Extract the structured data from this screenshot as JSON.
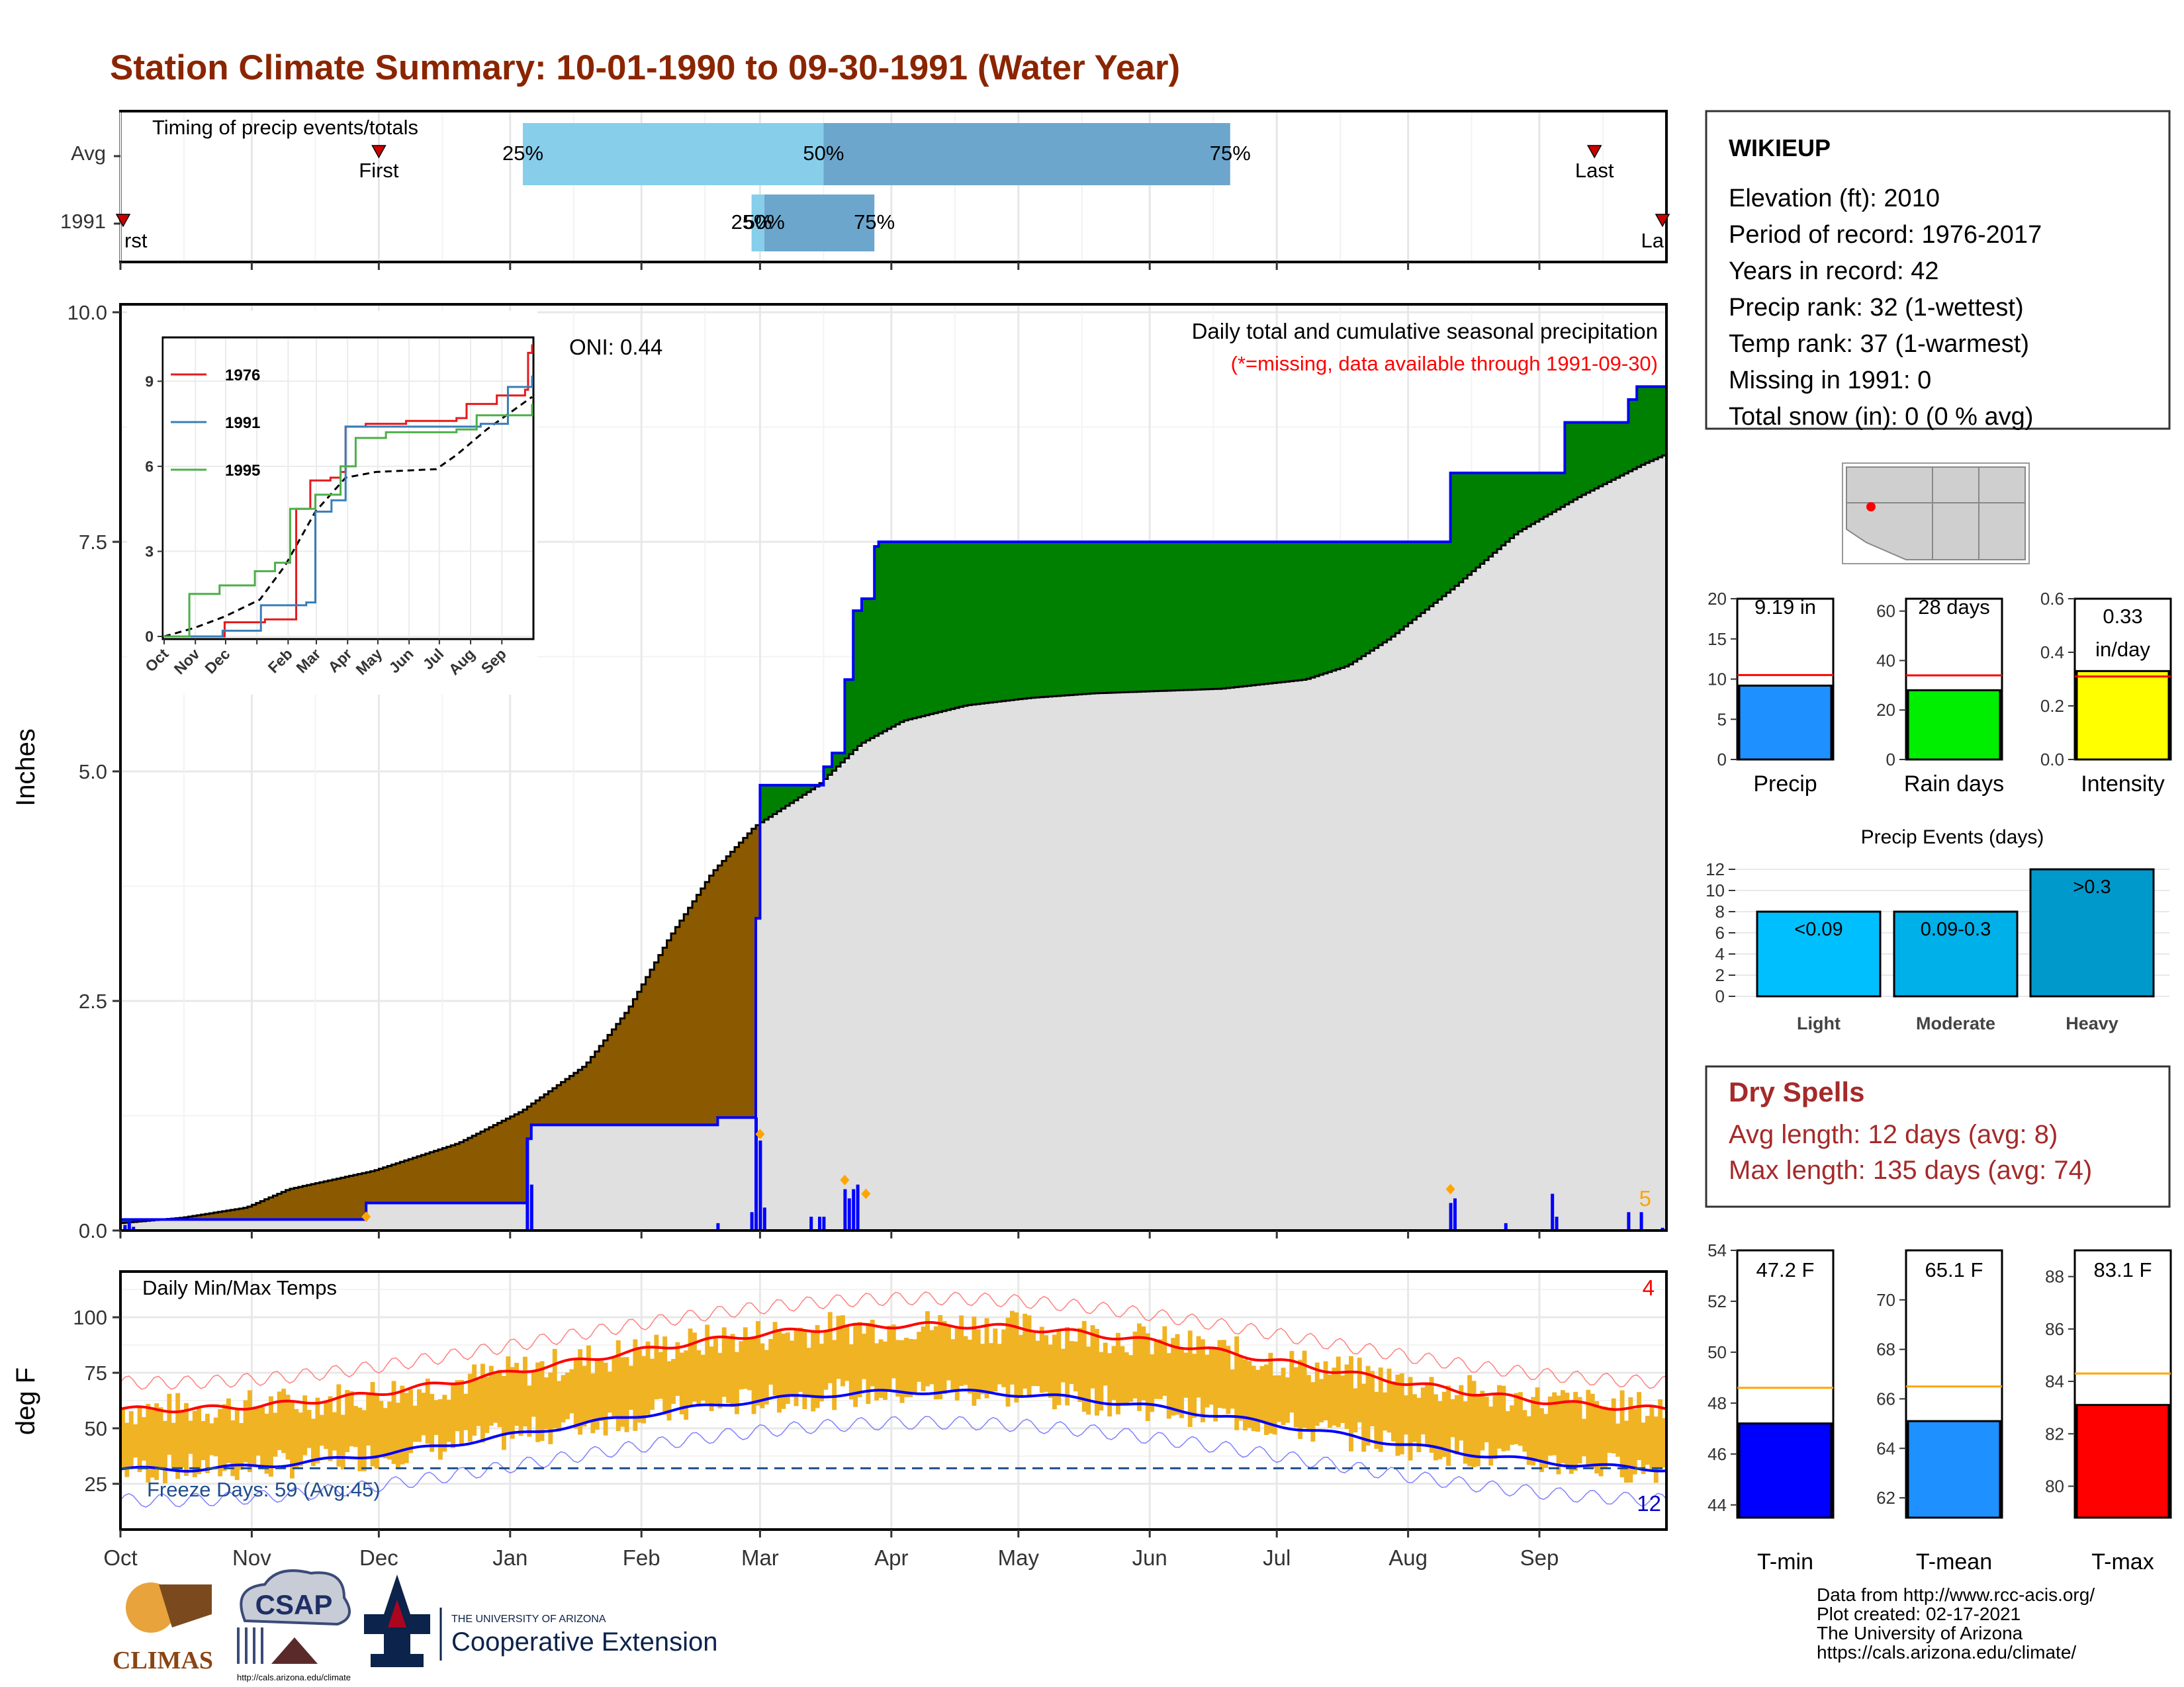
{
  "title": "Station Climate Summary: 10-01-1990 to 09-30-1991 (Water Year)",
  "colors": {
    "title": "#8b2500",
    "accum_avg": "#8b5a00",
    "accum_obs": "#008000",
    "obs_line": "#0000ff",
    "avg_fill": "#e0e0e0",
    "temp_bar": "#f0b323",
    "tmax_avg": "#ff0000",
    "tmin_avg": "#0000ff",
    "dry": "#a52a2a"
  },
  "months": [
    "Oct",
    "Nov",
    "Dec",
    "Jan",
    "Feb",
    "Mar",
    "Apr",
    "May",
    "Jun",
    "Jul",
    "Aug",
    "Sep"
  ],
  "timing": {
    "title": "Timing of precip events/totals",
    "rows": [
      "Avg",
      "1991"
    ],
    "first_label": "First",
    "last_label": "Last",
    "first_short": "rst",
    "last_short": "La",
    "avg": {
      "first": 61,
      "q25": 95,
      "q50": 166,
      "q75": 262,
      "last": 348
    },
    "year": {
      "first": 0,
      "q25": 149,
      "q50": 152,
      "q75": 178,
      "last": 365
    },
    "q25_label": "25%",
    "q50_label": "50%",
    "q75_label": "75%"
  },
  "precip_chart": {
    "ylabel": "Inches",
    "yticks": [
      "0.0",
      "2.5",
      "5.0",
      "7.5",
      "10.0"
    ],
    "ylim": [
      0,
      10
    ],
    "oni": "ONI: 0.44",
    "note1": "Daily total and cumulative seasonal precipitation",
    "note2": "(*=missing, data available through 1991-09-30)",
    "count_label": "5",
    "obs_cum": [
      [
        0,
        0.12
      ],
      [
        5,
        0.12
      ],
      [
        58,
        0.12
      ],
      [
        58,
        0.3
      ],
      [
        96,
        0.3
      ],
      [
        96,
        1.0
      ],
      [
        97,
        1.0
      ],
      [
        97,
        1.15
      ],
      [
        141,
        1.15
      ],
      [
        141,
        1.23
      ],
      [
        150,
        1.23
      ],
      [
        150,
        3.4
      ],
      [
        151,
        3.4
      ],
      [
        151,
        4.85
      ],
      [
        166,
        4.85
      ],
      [
        166,
        5.05
      ],
      [
        168,
        5.05
      ],
      [
        168,
        5.2
      ],
      [
        171,
        5.2
      ],
      [
        171,
        6.0
      ],
      [
        173,
        6.0
      ],
      [
        173,
        6.75
      ],
      [
        175,
        6.75
      ],
      [
        175,
        6.88
      ],
      [
        178,
        6.88
      ],
      [
        178,
        7.45
      ],
      [
        179,
        7.45
      ],
      [
        179,
        7.5
      ],
      [
        314,
        7.5
      ],
      [
        314,
        8.25
      ],
      [
        341,
        8.25
      ],
      [
        341,
        8.8
      ],
      [
        356,
        8.8
      ],
      [
        356,
        9.05
      ],
      [
        358,
        9.05
      ],
      [
        358,
        9.19
      ],
      [
        365,
        9.19
      ]
    ],
    "avg_cum": [
      [
        0,
        0.08
      ],
      [
        15,
        0.14
      ],
      [
        30,
        0.25
      ],
      [
        40,
        0.45
      ],
      [
        60,
        0.65
      ],
      [
        80,
        0.95
      ],
      [
        95,
        1.3
      ],
      [
        110,
        1.8
      ],
      [
        120,
        2.4
      ],
      [
        130,
        3.2
      ],
      [
        140,
        3.9
      ],
      [
        150,
        4.4
      ],
      [
        165,
        4.85
      ],
      [
        175,
        5.3
      ],
      [
        185,
        5.55
      ],
      [
        200,
        5.72
      ],
      [
        215,
        5.8
      ],
      [
        230,
        5.85
      ],
      [
        260,
        5.9
      ],
      [
        280,
        6.0
      ],
      [
        290,
        6.15
      ],
      [
        300,
        6.45
      ],
      [
        315,
        7.0
      ],
      [
        330,
        7.6
      ],
      [
        345,
        8.0
      ],
      [
        360,
        8.35
      ],
      [
        365,
        8.45
      ]
    ],
    "daily_bars": [
      [
        1,
        0.06
      ],
      [
        2,
        0.1
      ],
      [
        3,
        0.04
      ],
      [
        96,
        1.0
      ],
      [
        97,
        0.5
      ],
      [
        141,
        0.08
      ],
      [
        149,
        0.2
      ],
      [
        150,
        1.23
      ],
      [
        151,
        0.98
      ],
      [
        152,
        0.25
      ],
      [
        163,
        0.15
      ],
      [
        165,
        0.15
      ],
      [
        166,
        0.15
      ],
      [
        171,
        0.45
      ],
      [
        172,
        0.35
      ],
      [
        173,
        0.45
      ],
      [
        174,
        0.5
      ],
      [
        314,
        0.3
      ],
      [
        315,
        0.35
      ],
      [
        327,
        0.08
      ],
      [
        338,
        0.4
      ],
      [
        339,
        0.15
      ],
      [
        356,
        0.2
      ],
      [
        359,
        0.2
      ],
      [
        364,
        0.03
      ]
    ],
    "markers": [
      [
        58,
        0.15
      ],
      [
        151,
        1.05
      ],
      [
        171,
        0.55
      ],
      [
        176,
        0.4
      ],
      [
        314,
        0.45
      ]
    ]
  },
  "inset": {
    "series": [
      {
        "name": "1976",
        "color": "#e41a1c",
        "cum": [
          [
            0,
            0
          ],
          [
            40,
            0
          ],
          [
            60,
            0.5
          ],
          [
            100,
            0.6
          ],
          [
            125,
            0.6
          ],
          [
            131,
            4.5
          ],
          [
            145,
            5.5
          ],
          [
            165,
            5.6
          ],
          [
            175,
            5.8
          ],
          [
            180,
            7.4
          ],
          [
            200,
            7.5
          ],
          [
            240,
            7.6
          ],
          [
            290,
            7.7
          ],
          [
            300,
            8.2
          ],
          [
            330,
            8.5
          ],
          [
            358,
            8.7
          ],
          [
            361,
            10.0
          ],
          [
            365,
            10.3
          ]
        ]
      },
      {
        "name": "1991",
        "color": "#377eb8",
        "cum": [
          [
            0,
            0
          ],
          [
            58,
            0.2
          ],
          [
            96,
            1.1
          ],
          [
            141,
            1.2
          ],
          [
            150,
            4.4
          ],
          [
            166,
            4.8
          ],
          [
            180,
            7.4
          ],
          [
            314,
            7.5
          ],
          [
            341,
            8.8
          ],
          [
            365,
            9.2
          ]
        ]
      },
      {
        "name": "1995",
        "color": "#4daf4a",
        "cum": [
          [
            0,
            0
          ],
          [
            25,
            1.5
          ],
          [
            55,
            1.8
          ],
          [
            90,
            2.3
          ],
          [
            110,
            2.6
          ],
          [
            125,
            4.5
          ],
          [
            150,
            5.0
          ],
          [
            175,
            6.0
          ],
          [
            190,
            7.0
          ],
          [
            220,
            7.2
          ],
          [
            290,
            7.3
          ],
          [
            310,
            7.8
          ],
          [
            365,
            8.2
          ]
        ]
      }
    ],
    "avg": [
      [
        0,
        0
      ],
      [
        30,
        0.3
      ],
      [
        60,
        0.7
      ],
      [
        95,
        1.3
      ],
      [
        120,
        2.5
      ],
      [
        150,
        4.4
      ],
      [
        180,
        5.6
      ],
      [
        210,
        5.8
      ],
      [
        270,
        5.9
      ],
      [
        290,
        6.4
      ],
      [
        320,
        7.3
      ],
      [
        365,
        8.45
      ]
    ],
    "yticks": [
      "0",
      "3",
      "6",
      "9"
    ],
    "ymax": 10.5
  },
  "temp_chart": {
    "title": "Daily Min/Max Temps",
    "ylabel": "deg F",
    "yticks": [
      "25",
      "50",
      "75",
      "100"
    ],
    "ylim": [
      5,
      120
    ],
    "freeze_label": "Freeze Days: 59 (Avg:45)",
    "freeze_line": 32,
    "hot_count": "4",
    "cold_count": "12"
  },
  "station": {
    "name": "WIKIEUP",
    "lines": [
      "Elevation (ft): 2010",
      "Period of record: 1976-2017",
      "Years in record: 42",
      "Precip rank: 32 (1-wettest)",
      "Temp rank: 37 (1-warmest)",
      "Missing in 1991: 0",
      "Total snow (in): 0 (0 % avg)"
    ]
  },
  "summary_bars": [
    {
      "label": "Precip",
      "value_label": "9.19 in",
      "value": 9.19,
      "avg": 10.5,
      "max": 20,
      "ticks": [
        "0",
        "5",
        "10",
        "15",
        "20"
      ],
      "color": "#1e90ff"
    },
    {
      "label": "Rain days",
      "value_label": "28 days",
      "value": 28,
      "avg": 34,
      "max": 65,
      "ticks": [
        "0",
        "20",
        "40",
        "60"
      ],
      "color": "#00ee00"
    },
    {
      "label": "Intensity",
      "value_label": "0.33 in/day",
      "value": 0.33,
      "avg": 0.31,
      "max": 0.6,
      "ticks": [
        "0.0",
        "0.2",
        "0.4",
        "0.6"
      ],
      "color": "#ffff00"
    }
  ],
  "events": {
    "title": "Precip Events (days)",
    "categories": [
      "Light",
      "Moderate",
      "Heavy"
    ],
    "values": [
      8,
      8,
      12
    ],
    "labels": [
      "<0.09",
      "0.09-0.3",
      ">0.3"
    ],
    "colors": [
      "#00bfff",
      "#00b0e8",
      "#0099cc"
    ],
    "yticks": [
      "0",
      "2",
      "4",
      "6",
      "8",
      "10",
      "12"
    ]
  },
  "dry_spells": {
    "title": "Dry Spells",
    "avg": "Avg length: 12 days (avg: 8)",
    "max": "Max length: 135 days (avg: 74)"
  },
  "temp_bars": [
    {
      "label": "T-min",
      "value_label": "47.2 F",
      "value": 47.2,
      "avg": 48.6,
      "min": 43.5,
      "max": 54,
      "ticks": [
        "44",
        "46",
        "48",
        "50",
        "52",
        "54"
      ],
      "color": "#0000ff"
    },
    {
      "label": "T-mean",
      "value_label": "65.1 F",
      "value": 65.1,
      "avg": 66.5,
      "min": 61.2,
      "max": 72,
      "ticks": [
        "62",
        "64",
        "66",
        "68",
        "70"
      ],
      "color": "#1e90ff"
    },
    {
      "label": "T-max",
      "value_label": "83.1 F",
      "value": 83.1,
      "avg": 84.3,
      "min": 78.8,
      "max": 89,
      "ticks": [
        "80",
        "82",
        "84",
        "86",
        "88"
      ],
      "color": "#ff0000"
    }
  ],
  "footer": {
    "lines": [
      "Data from http://www.rcc-acis.org/",
      "Plot created: 02-17-2021",
      "The University of Arizona",
      "https://cals.arizona.edu/climate/"
    ],
    "climas": "CLIMAS",
    "csap": "CSAP",
    "csap_url": "http://cals.arizona.edu/climate",
    "ua_small": "THE UNIVERSITY OF ARIZONA",
    "ua_big": "Cooperative Extension"
  }
}
